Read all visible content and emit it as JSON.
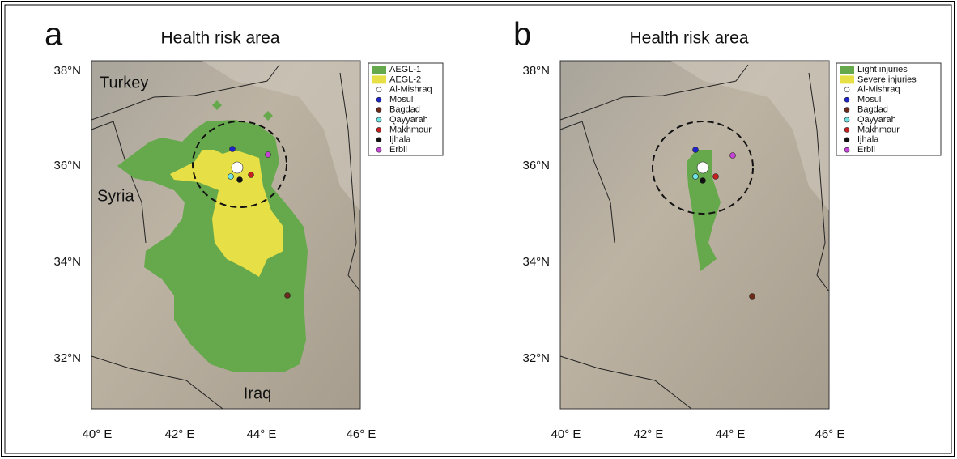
{
  "panels": [
    {
      "label": "a",
      "title": "Health risk area",
      "legend": [
        "AEGL-1",
        "AEGL-2",
        "Al-Mishraq",
        "Mosul",
        "Bagdad",
        "Qayyarah",
        "Makhmour",
        "Ijhala",
        "Erbil"
      ],
      "places": [
        "Turkey",
        "Syria",
        "Iraq"
      ]
    },
    {
      "label": "b",
      "title": "Health risk area",
      "legend": [
        "Light injuries",
        "Severe injuries",
        "Al-Mishraq",
        "Mosul",
        "Bagdad",
        "Qayyarah",
        "Makhmour",
        "Ijhala",
        "Erbil"
      ]
    }
  ],
  "lat_ticks": [
    "38°N",
    "36°N",
    "34°N",
    "32°N"
  ],
  "lon_ticks": [
    "40° E",
    "42° E",
    "44° E",
    "46° E"
  ]
}
